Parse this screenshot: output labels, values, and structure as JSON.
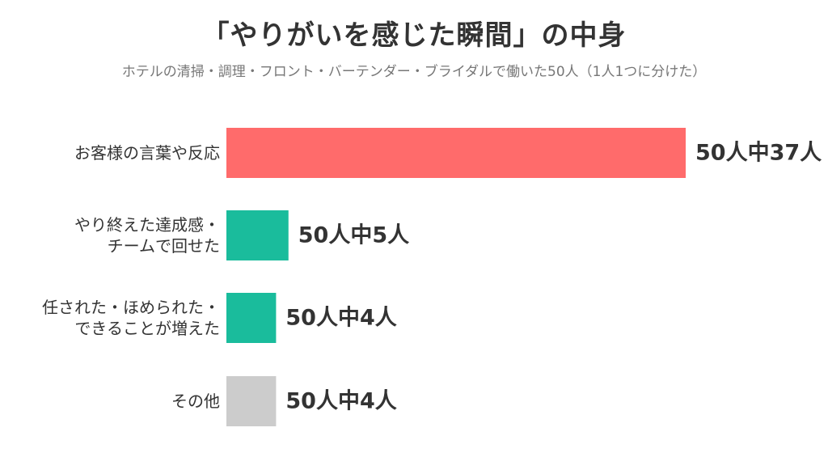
{
  "chart_data": {
    "type": "bar",
    "orientation": "horizontal",
    "title": "「やりがいを感じた瞬間」の中身",
    "subtitle": "ホテルの清掃・調理・フロント・バーテンダー・ブライダルで働いた50人（1人1つに分けた）",
    "categories": [
      [
        "お客様の言葉や反応"
      ],
      [
        "やり終えた達成感・",
        "チームで回せた"
      ],
      [
        "任された・ほめられた・",
        "できることが増えた"
      ],
      [
        "その他"
      ]
    ],
    "values": [
      37,
      5,
      4,
      4
    ],
    "value_labels": [
      "50人中37人",
      "50人中5人",
      "50人中4人",
      "50人中4人"
    ],
    "colors": [
      "#ff6b6b",
      "#1abc9c",
      "#1abc9c",
      "#cccccc"
    ],
    "xlim": [
      0,
      37
    ],
    "grid": false,
    "legend": "none"
  }
}
